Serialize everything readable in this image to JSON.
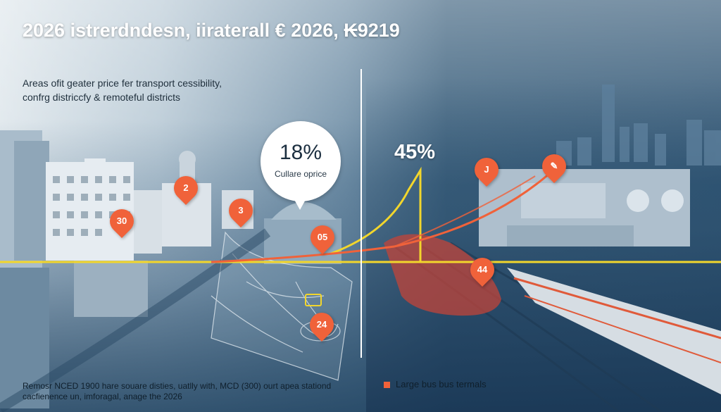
{
  "title": "2026 istrerdndesn, iiraterall € 2026, ₭9219",
  "subtitle": {
    "line1": "Areas ofit geater price fer transport cessibility,",
    "line2": "confrg districcfy & remoteful districts"
  },
  "callout": {
    "value": "18%",
    "caption": "Cullare oprice"
  },
  "percent_right": "45%",
  "markers": [
    {
      "label": "2"
    },
    {
      "label": "30"
    },
    {
      "label": "3"
    },
    {
      "label": "05"
    },
    {
      "label": "24"
    },
    {
      "label": "J"
    },
    {
      "label": "44"
    }
  ],
  "footer": {
    "line1": "Remosr NCED 1900 hare souare disties, uatlly with, MCD (300) ourt apea stationd",
    "line2": "cacfienence un, imforagal, anage the 2026"
  },
  "legend": {
    "label": "Large bus bus termals",
    "color": "#f0623a"
  },
  "colors": {
    "accent_orange": "#f0623a",
    "accent_yellow": "#f2d62c",
    "divider": "#ffffff"
  }
}
